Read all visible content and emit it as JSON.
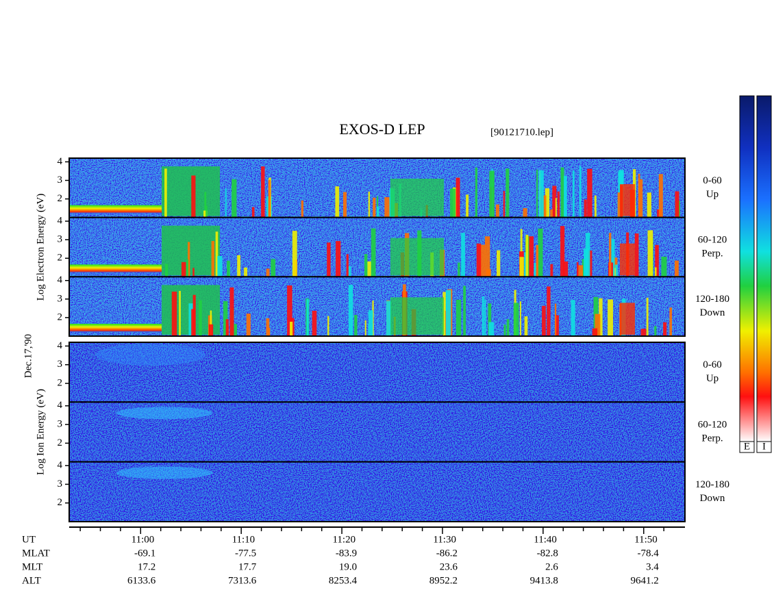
{
  "chart_data": {
    "type": "spectrogram",
    "title": "EXOS-D LEP",
    "file": "[90121710.lep]",
    "date": "Dec.17,'90",
    "xlim": [
      652.9,
      714.1
    ],
    "xticks": [
      {
        "value": 660,
        "label": "11:00"
      },
      {
        "value": 670,
        "label": "11:10"
      },
      {
        "value": 680,
        "label": "11:20"
      },
      {
        "value": 690,
        "label": "11:30"
      },
      {
        "value": 700,
        "label": "11:40"
      },
      {
        "value": 710,
        "label": "11:50"
      }
    ],
    "xminorticks": [
      654,
      656,
      658,
      662,
      664,
      666,
      668,
      672,
      674,
      676,
      678,
      682,
      684,
      686,
      688,
      692,
      694,
      696,
      698,
      702,
      704,
      706,
      708,
      712
    ],
    "ylim": [
      1,
      4.2
    ],
    "yticks": [
      2,
      3,
      4
    ],
    "groups": [
      {
        "ylabel": "Log Electron Energy (eV)",
        "panels": [
          {
            "label": "0-60",
            "sublabel": "Up"
          },
          {
            "label": "60-120",
            "sublabel": "Perp."
          },
          {
            "label": "120-180",
            "sublabel": "Down"
          }
        ]
      },
      {
        "ylabel": "Log Ion Energy (eV)",
        "panels": [
          {
            "label": "0-60",
            "sublabel": "Up"
          },
          {
            "label": "60-120",
            "sublabel": "Perp."
          },
          {
            "label": "120-180",
            "sublabel": "Down"
          }
        ]
      }
    ],
    "ephemeris": [
      {
        "name": "UT"
      },
      {
        "name": "MLAT",
        "values": [
          "-69.1",
          "-77.5",
          "-83.9",
          "-86.2",
          "-82.8",
          "-78.4"
        ]
      },
      {
        "name": "MLT",
        "values": [
          "17.2",
          "17.7",
          "19.0",
          "23.6",
          "2.6",
          "3.4"
        ]
      },
      {
        "name": "ALT",
        "values": [
          "6133.6",
          "7313.6",
          "8253.4",
          "8952.2",
          "9413.8",
          "9641.2"
        ]
      }
    ],
    "colorbars": [
      "E",
      "I"
    ]
  }
}
